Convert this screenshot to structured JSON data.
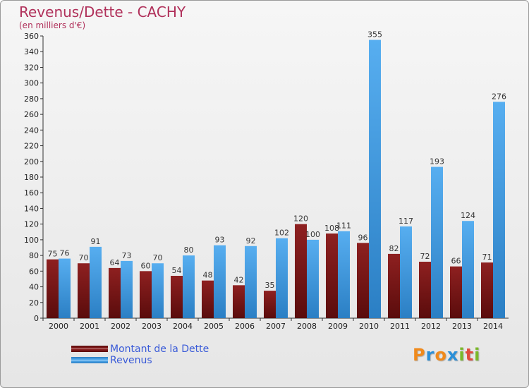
{
  "title": "Revenus/Dette - CACHY",
  "subtitle": "(en milliers d'€)",
  "logo": {
    "text": "Proxiti",
    "letters": [
      {
        "ch": "P",
        "color": "#f08a1c"
      },
      {
        "ch": "r",
        "color": "#2a8fd8"
      },
      {
        "ch": "o",
        "color": "#f08a1c"
      },
      {
        "ch": "x",
        "color": "#2a8fd8"
      },
      {
        "ch": "i",
        "color": "#7ab829"
      },
      {
        "ch": "t",
        "color": "#e24a3b"
      },
      {
        "ch": "i",
        "color": "#7ab829"
      }
    ]
  },
  "colors": {
    "dette": "#8b1a1a",
    "revenus": "#3a9ae0",
    "title": "#b0305a",
    "legend_text": "#3a5bd8"
  },
  "chart_data": {
    "type": "bar",
    "title": "Revenus/Dette - CACHY",
    "ylabel": "(en milliers d'€)",
    "xlabel": "",
    "categories": [
      "2000",
      "2001",
      "2002",
      "2003",
      "2004",
      "2005",
      "2006",
      "2007",
      "2008",
      "2009",
      "2010",
      "2011",
      "2012",
      "2013",
      "2014"
    ],
    "series": [
      {
        "name": "Montant de la Dette",
        "values": [
          75,
          70,
          64,
          60,
          54,
          48,
          42,
          35,
          120,
          108,
          96,
          82,
          72,
          66,
          71
        ]
      },
      {
        "name": "Revenus",
        "values": [
          76,
          91,
          73,
          70,
          80,
          93,
          92,
          102,
          100,
          111,
          355,
          117,
          193,
          124,
          276
        ]
      }
    ],
    "ylim": [
      0,
      360
    ],
    "yticks": [
      0,
      20,
      40,
      60,
      80,
      100,
      120,
      140,
      160,
      180,
      200,
      220,
      240,
      260,
      280,
      300,
      320,
      340,
      360
    ],
    "grid": false,
    "legend": "bottom-left"
  }
}
